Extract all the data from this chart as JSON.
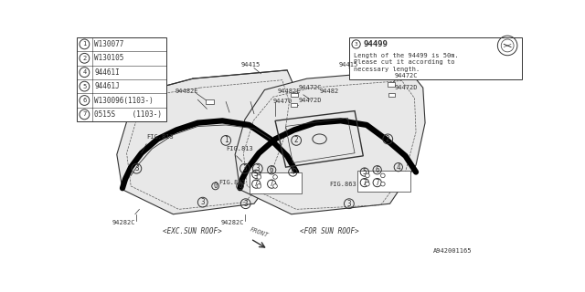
{
  "bg_color": "#f0f0f0",
  "line_color": "#404040",
  "part_number_label": "A942001165",
  "legend_items": [
    {
      "num": "1",
      "part": "W130077"
    },
    {
      "num": "2",
      "part": "W130105"
    },
    {
      "num": "4",
      "part": "94461I"
    },
    {
      "num": "5",
      "part": "94461J"
    },
    {
      "num": "6",
      "part": "W130096(1103-)"
    },
    {
      "num": "7",
      "part": "0515S    (1103-)"
    }
  ],
  "note_num": "3",
  "note_part": "94499",
  "note_text1": "Length of the 94499 is 50m.",
  "note_text2": "Please cut it according to",
  "note_text3": "necessary length.",
  "left_label": "<EXC.SUN ROOF>",
  "right_label": "<FOR SUN ROOF>",
  "front_label": "FRONT",
  "fig_813": "FIG.813",
  "fig_863": "FIG.863"
}
